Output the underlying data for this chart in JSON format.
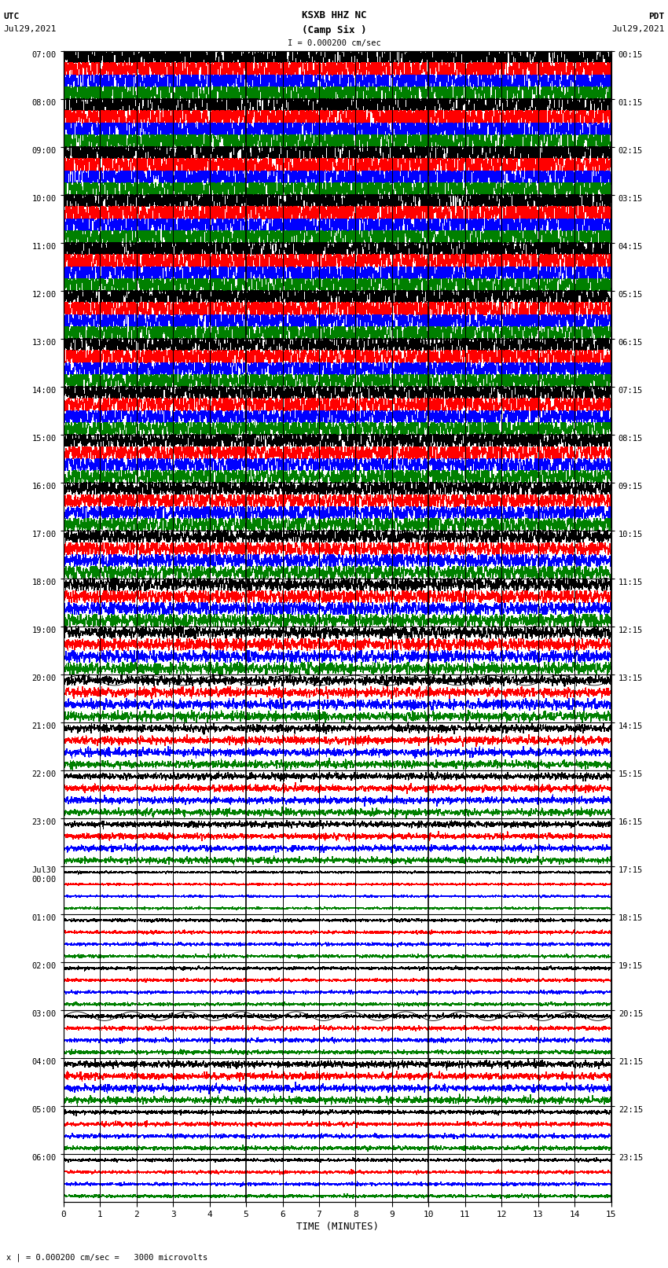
{
  "title_line1": "KSXB HHZ NC",
  "title_line2": "(Camp Six )",
  "scale_label": "I = 0.000200 cm/sec",
  "utc_label": "UTC",
  "utc_date": "Jul29,2021",
  "pdt_label": "PDT",
  "pdt_date": "Jul29,2021",
  "xlabel": "TIME (MINUTES)",
  "bottom_note": "x | = 0.000200 cm/sec =   3000 microvolts",
  "left_times_utc": [
    "07:00",
    "08:00",
    "09:00",
    "10:00",
    "11:00",
    "12:00",
    "13:00",
    "14:00",
    "15:00",
    "16:00",
    "17:00",
    "18:00",
    "19:00",
    "20:00",
    "21:00",
    "22:00",
    "23:00",
    "Jul30\n00:00",
    "01:00",
    "02:00",
    "03:00",
    "04:00",
    "05:00",
    "06:00"
  ],
  "right_times_pdt": [
    "00:15",
    "01:15",
    "02:15",
    "03:15",
    "04:15",
    "05:15",
    "06:15",
    "07:15",
    "08:15",
    "09:15",
    "10:15",
    "11:15",
    "12:15",
    "13:15",
    "14:15",
    "15:15",
    "16:15",
    "17:15",
    "18:15",
    "19:15",
    "20:15",
    "21:15",
    "22:15",
    "23:15"
  ],
  "n_rows": 24,
  "n_traces_per_row": 4,
  "minutes_per_row": 15,
  "x_ticks": [
    0,
    1,
    2,
    3,
    4,
    5,
    6,
    7,
    8,
    9,
    10,
    11,
    12,
    13,
    14,
    15
  ],
  "colors": [
    "black",
    "red",
    "blue",
    "green"
  ],
  "bg_color": "#ffffff",
  "grid_color": "#000000",
  "figsize": [
    8.5,
    16.13
  ],
  "dpi": 100,
  "activity_by_row": [
    4.0,
    4.0,
    3.5,
    3.5,
    3.0,
    2.5,
    2.0,
    1.8,
    1.5,
    1.2,
    1.0,
    0.9,
    0.7,
    0.5,
    0.4,
    0.35,
    0.3,
    0.1,
    0.15,
    0.15,
    0.2,
    0.35,
    0.2,
    0.15
  ]
}
